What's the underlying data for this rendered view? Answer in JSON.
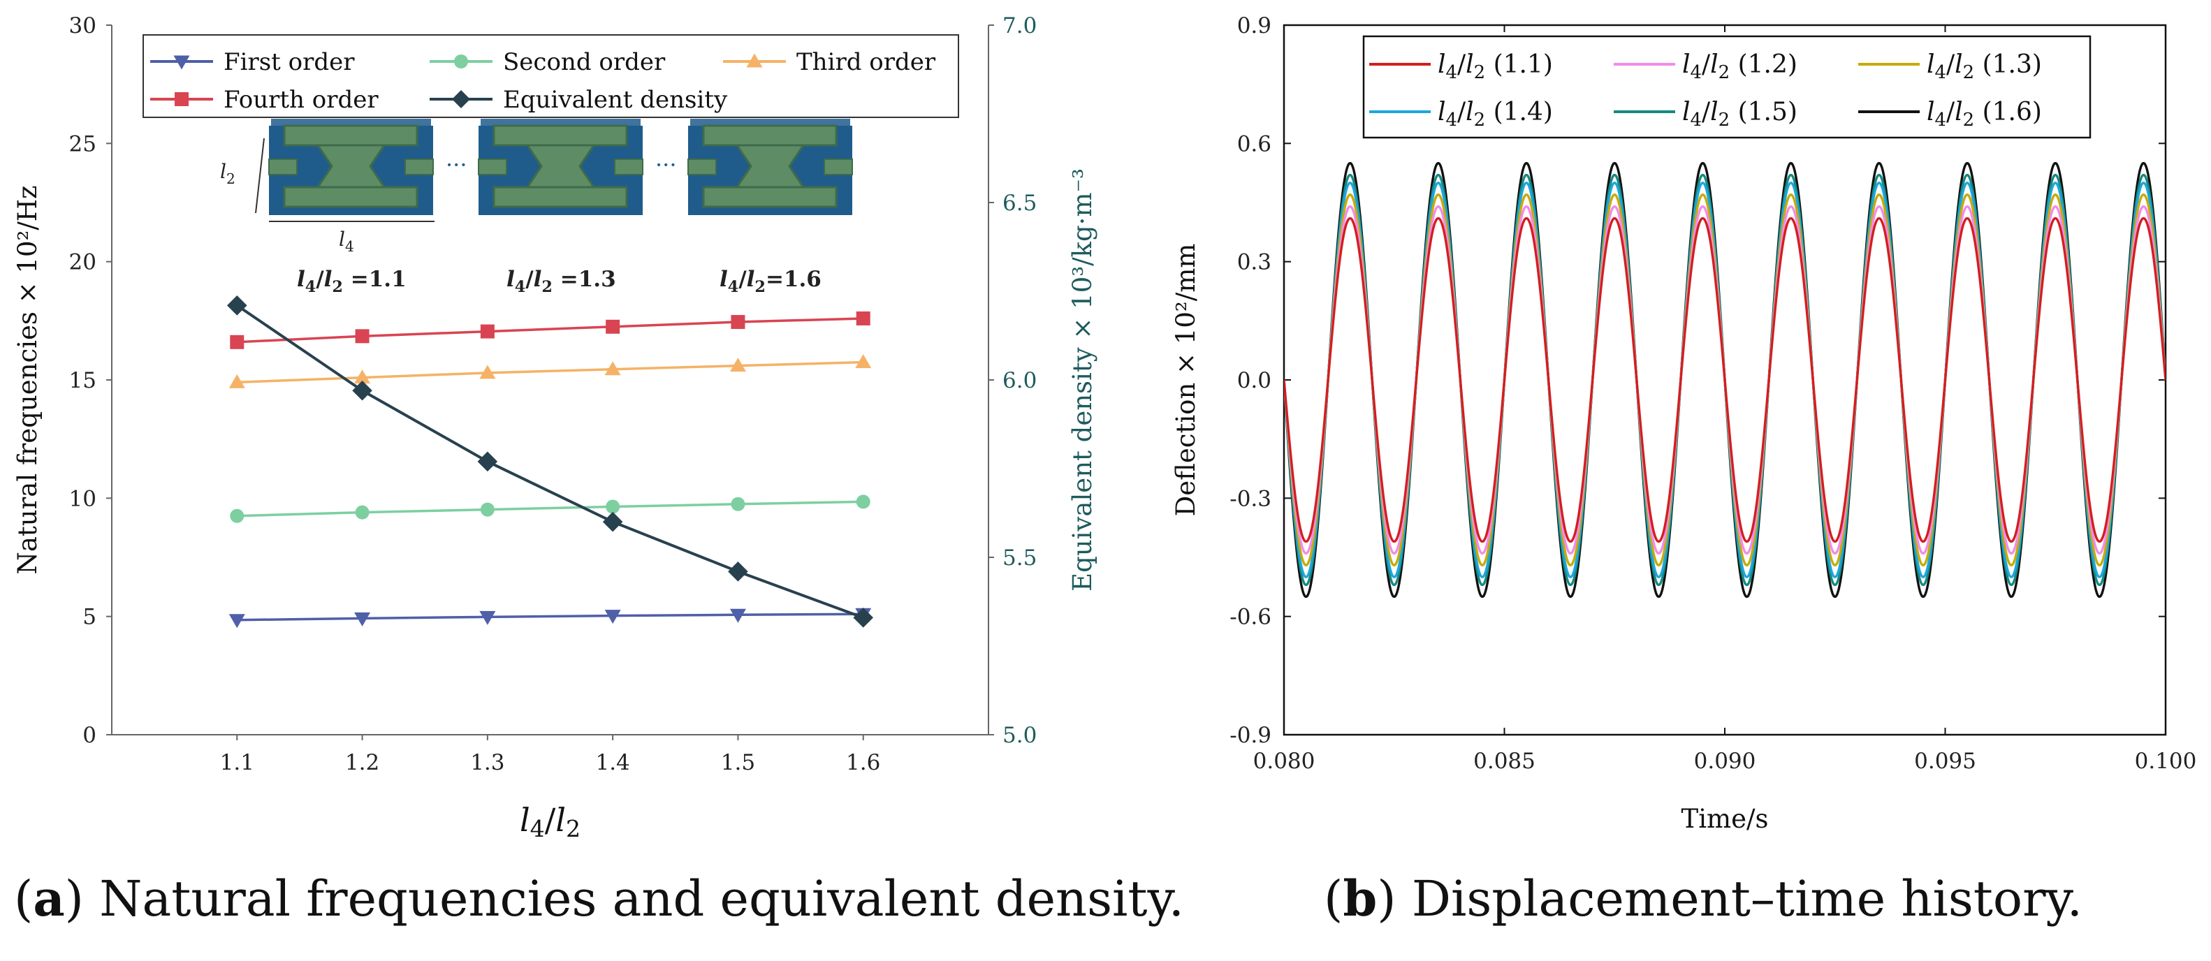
{
  "caption_a": {
    "label": "a",
    "text": "Natural frequencies and equivalent density."
  },
  "caption_b": {
    "label": "b",
    "text": "Displacement–time history."
  },
  "chart_data": [
    {
      "type": "line",
      "title": "",
      "xlabel": "l4/l2",
      "ylabel": "Natural frequencies × 10²/Hz",
      "y2label": "Equivalent density × 10³/kg·m⁻³",
      "x": [
        1.1,
        1.2,
        1.3,
        1.4,
        1.5,
        1.6
      ],
      "x_ticks": [
        "1.1",
        "1.2",
        "1.3",
        "1.4",
        "1.5",
        "1.6"
      ],
      "xlim": [
        1.0,
        1.7
      ],
      "ylim": [
        0,
        30
      ],
      "y_ticks": [
        "0",
        "5",
        "10",
        "15",
        "20",
        "25",
        "30"
      ],
      "y2lim": [
        5.0,
        7.0
      ],
      "y2_ticks": [
        "5.0",
        "5.5",
        "6.0",
        "6.5",
        "7.0"
      ],
      "series": [
        {
          "name": "First order",
          "color": "#4F5FA8",
          "marker": "triangle-down",
          "axis": "left",
          "values": [
            4.85,
            4.92,
            4.98,
            5.03,
            5.07,
            5.1
          ]
        },
        {
          "name": "Second order",
          "color": "#7DCFA0",
          "marker": "circle",
          "axis": "left",
          "values": [
            9.25,
            9.4,
            9.52,
            9.64,
            9.75,
            9.85
          ]
        },
        {
          "name": "Third order",
          "color": "#F5B266",
          "marker": "triangle-up",
          "axis": "left",
          "values": [
            14.9,
            15.1,
            15.3,
            15.45,
            15.6,
            15.75
          ]
        },
        {
          "name": "Fourth order",
          "color": "#D94452",
          "marker": "square",
          "axis": "left",
          "values": [
            16.6,
            16.85,
            17.05,
            17.25,
            17.45,
            17.6
          ]
        },
        {
          "name": "Equivalent density",
          "color": "#28414F",
          "marker": "diamond",
          "axis": "right",
          "values": [
            6.21,
            5.97,
            5.77,
            5.6,
            5.46,
            5.33
          ]
        }
      ],
      "inset": {
        "dimension_labels": [
          "l2",
          "l4"
        ],
        "ratio_labels": [
          "l4/l2 =1.1",
          "l4/l2 =1.3",
          "l4/l2=1.6"
        ],
        "colors": {
          "base": "#1F5C8C",
          "cell": "#5E8C65",
          "cell_dark": "#3F6B4A"
        }
      },
      "legend_position": "top"
    },
    {
      "type": "line",
      "title": "",
      "xlabel": "Time/s",
      "ylabel": "Deflection × 10²/mm",
      "xlim": [
        0.08,
        0.1
      ],
      "x_ticks": [
        "0.080",
        "0.085",
        "0.090",
        "0.095",
        "0.100"
      ],
      "ylim": [
        -0.9,
        0.9
      ],
      "y_ticks": [
        "-0.9",
        "-0.6",
        "-0.3",
        "0.0",
        "0.3",
        "0.6",
        "0.9"
      ],
      "signal": {
        "form": "-A·sin(2π(t-0.08)/T)",
        "period_s": 0.002,
        "t_start": 0.08,
        "t_end": 0.1
      },
      "series": [
        {
          "name": "l4/l2 (1.1)",
          "color": "#D21F1F",
          "amplitude": 0.41
        },
        {
          "name": "l4/l2 (1.2)",
          "color": "#F08CEB",
          "amplitude": 0.44
        },
        {
          "name": "l4/l2 (1.3)",
          "color": "#C8AA08",
          "amplitude": 0.47
        },
        {
          "name": "l4/l2 (1.4)",
          "color": "#1EA6DC",
          "amplitude": 0.5
        },
        {
          "name": "l4/l2 (1.5)",
          "color": "#138A82",
          "amplitude": 0.52
        },
        {
          "name": "l4/l2 (1.6)",
          "color": "#111111",
          "amplitude": 0.55
        }
      ],
      "legend_position": "top"
    }
  ]
}
